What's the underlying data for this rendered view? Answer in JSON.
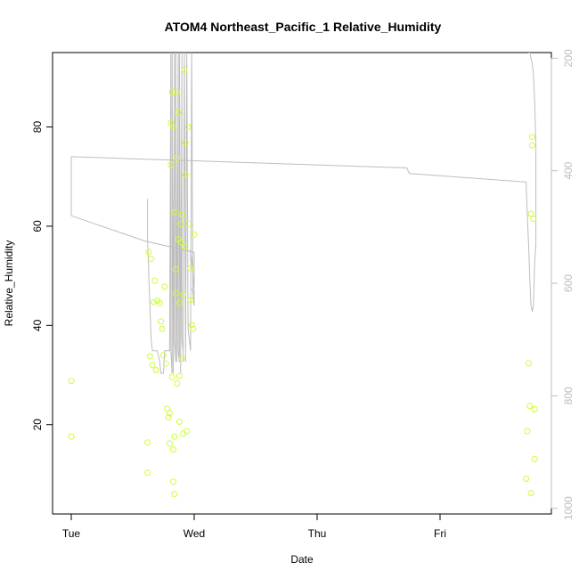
{
  "chart_data": {
    "type": "scatter",
    "title": "ATOM4 Northeast_Pacific_1 Relative_Humidity",
    "xlabel": "Date",
    "ylabel": "Relative_Humidity",
    "x_ticks": [
      "Tue",
      "Wed",
      "Thu",
      "Fri"
    ],
    "y_ticks": [
      "20",
      "40",
      "60",
      "80"
    ],
    "y2_ticks": [
      "200",
      "400",
      "600",
      "800",
      "1000"
    ],
    "xlim": [
      0,
      3.8
    ],
    "ylim": [
      2,
      95
    ],
    "y2lim": [
      1010,
      190
    ],
    "y2_reversed": true,
    "grid": false,
    "colors": {
      "points": "#ccff33",
      "profile_line": "#bdbdbd",
      "axis": "#000000",
      "right_axis": "#bdbdbd"
    },
    "series": [
      {
        "kind": "points",
        "x": [
          0.0,
          0.0,
          0.62,
          0.62,
          0.63,
          0.64,
          0.65,
          0.66,
          0.67,
          0.68,
          0.69,
          0.7,
          0.72,
          0.73,
          0.74,
          0.75,
          0.76,
          0.77,
          0.78,
          0.79,
          0.8,
          0.8,
          0.81,
          0.81,
          0.82,
          0.82,
          0.83,
          0.83,
          0.83,
          0.84,
          0.84,
          0.84,
          0.85,
          0.85,
          0.86,
          0.86,
          0.86,
          0.87,
          0.87,
          0.88,
          0.88,
          0.88,
          0.89,
          0.89,
          0.9,
          0.9,
          0.91,
          0.91,
          0.92,
          0.92,
          0.93,
          0.93,
          0.94,
          0.95,
          0.96,
          0.97,
          0.97,
          0.98,
          0.99,
          1.0,
          3.7,
          3.71,
          3.72,
          3.73,
          3.74,
          3.74,
          3.75,
          3.75,
          3.76,
          3.77,
          3.77
        ],
        "y": [
          28.8,
          17.6,
          16.4,
          10.3,
          54.8,
          33.8,
          53.4,
          32.0,
          44.7,
          49.0,
          31.0,
          45.0,
          44.5,
          40.8,
          39.3,
          34.0,
          47.8,
          32.3,
          23.2,
          21.5,
          22.3,
          16.2,
          80.8,
          72.4,
          87.0,
          29.6,
          80.1,
          15.0,
          8.5,
          62.8,
          17.6,
          6.0,
          51.3,
          46.5,
          87.0,
          73.8,
          28.3,
          82.9,
          57.4,
          44.5,
          20.6,
          29.8,
          56.8,
          60.4,
          62.3,
          33.3,
          18.2,
          46.2,
          91.5,
          55.9,
          76.9,
          70.4,
          18.7,
          80.0,
          60.5,
          51.5,
          45.1,
          40.1,
          39.3,
          58.3,
          9.1,
          18.7,
          32.4,
          23.8,
          62.5,
          6.2,
          78.0,
          76.3,
          61.5,
          23.1,
          13.1
        ],
        "marker": "open-circle"
      },
      {
        "kind": "line",
        "x": [
          0.0,
          0.0,
          2.73,
          2.75,
          3.7,
          3.71,
          3.72,
          3.73,
          3.74,
          3.75,
          3.76,
          3.77,
          3.78,
          3.78,
          3.78,
          3.77,
          3.76,
          3.75,
          3.74,
          3.73,
          3.72
        ],
        "y2": [
          480,
          375,
          395,
          405,
          420,
          480,
          530,
          590,
          640,
          650,
          640,
          560,
          530,
          470,
          350,
          280,
          230,
          210,
          200,
          190,
          190
        ]
      },
      {
        "kind": "line",
        "x": [
          0.0,
          0.2,
          0.4,
          0.6,
          0.8,
          0.9,
          1.0,
          1.0,
          0.98
        ],
        "y2": [
          480,
          495,
          510,
          525,
          535,
          540,
          545,
          620,
          610
        ]
      },
      {
        "kind": "line",
        "x": [
          0.62,
          0.62,
          0.63,
          0.64,
          0.65,
          0.66,
          0.68,
          0.7,
          0.72,
          0.73,
          0.75,
          0.76,
          0.78,
          0.8,
          0.81,
          0.81,
          0.82,
          0.82,
          0.83,
          0.83,
          0.84,
          0.84,
          0.85,
          0.85,
          0.86,
          0.86,
          0.87,
          0.87,
          0.88,
          0.88,
          0.89,
          0.89,
          0.9,
          0.9,
          0.91,
          0.91,
          0.92,
          0.93,
          0.93,
          0.94,
          0.95,
          0.96,
          0.97,
          0.98,
          0.99,
          1.0,
          1.0,
          0.98,
          0.97,
          0.97
        ],
        "y2": [
          450,
          520,
          580,
          640,
          700,
          720,
          720,
          720,
          740,
          760,
          760,
          720,
          720,
          720,
          190,
          720,
          760,
          190,
          700,
          760,
          190,
          700,
          740,
          190,
          700,
          740,
          190,
          720,
          740,
          190,
          720,
          760,
          190,
          700,
          720,
          740,
          190,
          700,
          740,
          190,
          680,
          700,
          720,
          190,
          620,
          640,
          610,
          560,
          540,
          560
        ]
      }
    ]
  }
}
